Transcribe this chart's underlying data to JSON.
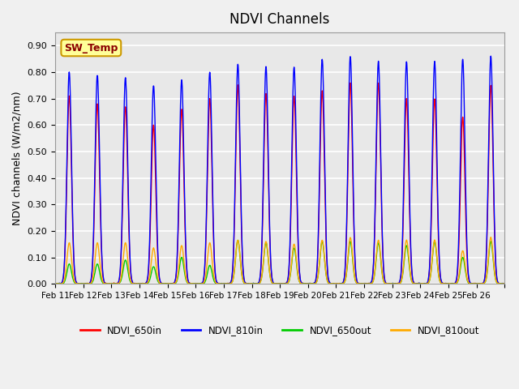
{
  "title": "NDVI Channels",
  "ylabel": "NDVI channels (W/m2/nm)",
  "xlabel": "",
  "ylim": [
    0.0,
    0.95
  ],
  "annotation_text": "SW_Temp",
  "legend_labels": [
    "NDVI_650in",
    "NDVI_810in",
    "NDVI_650out",
    "NDVI_810out"
  ],
  "legend_colors": [
    "#ff0000",
    "#0000ff",
    "#00cc00",
    "#ffaa00"
  ],
  "background_color": "#e8e8e8",
  "plot_bg_color": "#e8e8e8",
  "xtick_labels": [
    "Feb 11",
    "Feb 12",
    "Feb 13",
    "Feb 14",
    "Feb 15",
    "Feb 16",
    "Feb 17",
    "Feb 18",
    "Feb 19",
    "Feb 20",
    "Feb 21",
    "Feb 22",
    "Feb 23",
    "Feb 24",
    "Feb 25",
    "Feb 26"
  ],
  "peaks_650in": [
    0.71,
    0.68,
    0.67,
    0.6,
    0.66,
    0.7,
    0.75,
    0.72,
    0.71,
    0.73,
    0.76,
    0.76,
    0.7,
    0.7,
    0.63,
    0.75
  ],
  "peaks_810in": [
    0.8,
    0.79,
    0.78,
    0.75,
    0.77,
    0.8,
    0.83,
    0.82,
    0.82,
    0.85,
    0.86,
    0.84,
    0.84,
    0.84,
    0.85,
    0.86
  ],
  "peaks_650out": [
    0.075,
    0.075,
    0.09,
    0.065,
    0.1,
    0.07,
    0.165,
    0.155,
    0.135,
    0.16,
    0.16,
    0.155,
    0.145,
    0.16,
    0.1,
    0.16
  ],
  "peaks_810out": [
    0.155,
    0.155,
    0.155,
    0.135,
    0.145,
    0.155,
    0.165,
    0.16,
    0.15,
    0.165,
    0.175,
    0.165,
    0.165,
    0.165,
    0.125,
    0.175
  ],
  "n_days": 16,
  "points_per_day": 100
}
